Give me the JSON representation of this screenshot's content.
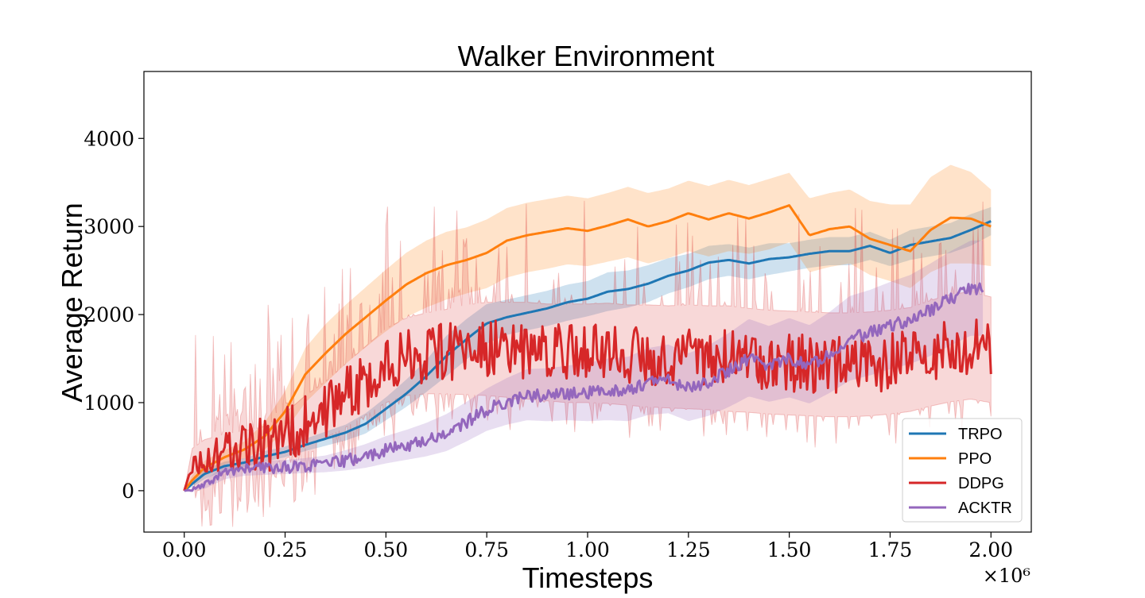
{
  "chart_data": {
    "type": "line",
    "title": "Walker Environment",
    "xlabel": "Timesteps",
    "ylabel": "Average Return",
    "x_offset_label": "×10⁶",
    "xlim": [
      -0.1,
      2.1
    ],
    "ylim": [
      -470,
      4760
    ],
    "xticks": [
      0.0,
      0.25,
      0.5,
      0.75,
      1.0,
      1.25,
      1.5,
      1.75,
      2.0
    ],
    "xtick_labels": [
      "0.00",
      "0.25",
      "0.50",
      "0.75",
      "1.00",
      "1.25",
      "1.50",
      "1.75",
      "2.00"
    ],
    "yticks": [
      0,
      1000,
      2000,
      3000,
      4000
    ],
    "ytick_labels": [
      "0",
      "1000",
      "2000",
      "3000",
      "4000"
    ],
    "grid": false,
    "legend_position": "lower-right",
    "series": [
      {
        "name": "TRPO",
        "color": "#1f77b4",
        "x": [
          0.0,
          0.02,
          0.05,
          0.1,
          0.15,
          0.2,
          0.25,
          0.3,
          0.35,
          0.4,
          0.45,
          0.5,
          0.55,
          0.6,
          0.65,
          0.7,
          0.75,
          0.8,
          0.85,
          0.9,
          0.95,
          1.0,
          1.05,
          1.1,
          1.15,
          1.2,
          1.25,
          1.3,
          1.35,
          1.4,
          1.45,
          1.5,
          1.55,
          1.6,
          1.65,
          1.7,
          1.75,
          1.8,
          1.85,
          1.9,
          1.95,
          2.0
        ],
        "y": [
          0,
          80,
          190,
          280,
          320,
          390,
          440,
          520,
          590,
          660,
          760,
          930,
          1100,
          1300,
          1530,
          1720,
          1900,
          1970,
          2020,
          2070,
          2140,
          2180,
          2260,
          2290,
          2350,
          2440,
          2500,
          2590,
          2620,
          2580,
          2630,
          2650,
          2690,
          2720,
          2720,
          2780,
          2700,
          2790,
          2830,
          2870,
          2960,
          3060
        ],
        "lower": [
          0,
          40,
          130,
          230,
          270,
          330,
          380,
          450,
          510,
          570,
          650,
          800,
          950,
          1120,
          1300,
          1490,
          1670,
          1770,
          1820,
          1870,
          1930,
          1980,
          2040,
          2080,
          2140,
          2240,
          2310,
          2400,
          2440,
          2400,
          2450,
          2490,
          2530,
          2560,
          2560,
          2620,
          2550,
          2620,
          2660,
          2700,
          2780,
          2900
        ],
        "upper": [
          0,
          120,
          240,
          330,
          370,
          450,
          500,
          590,
          670,
          750,
          880,
          1060,
          1260,
          1480,
          1760,
          1950,
          2120,
          2170,
          2220,
          2270,
          2340,
          2380,
          2480,
          2500,
          2560,
          2640,
          2690,
          2780,
          2800,
          2760,
          2810,
          2810,
          2850,
          2880,
          2880,
          2940,
          2850,
          2960,
          3000,
          3040,
          3140,
          3220
        ]
      },
      {
        "name": "PPO",
        "color": "#ff7f0e",
        "x": [
          0.0,
          0.02,
          0.05,
          0.1,
          0.15,
          0.2,
          0.25,
          0.3,
          0.35,
          0.4,
          0.45,
          0.5,
          0.55,
          0.6,
          0.65,
          0.7,
          0.75,
          0.8,
          0.85,
          0.9,
          0.95,
          1.0,
          1.05,
          1.1,
          1.15,
          1.2,
          1.25,
          1.3,
          1.35,
          1.4,
          1.45,
          1.5,
          1.55,
          1.6,
          1.65,
          1.7,
          1.75,
          1.8,
          1.85,
          1.9,
          1.95,
          2.0
        ],
        "y": [
          0,
          120,
          260,
          380,
          470,
          620,
          900,
          1320,
          1560,
          1780,
          1970,
          2160,
          2340,
          2470,
          2560,
          2620,
          2700,
          2840,
          2900,
          2940,
          2980,
          2950,
          3010,
          3080,
          3000,
          3060,
          3150,
          3080,
          3150,
          3090,
          3160,
          3240,
          2900,
          2970,
          3000,
          2860,
          2790,
          2720,
          2960,
          3100,
          3090,
          3000
        ],
        "lower": [
          0,
          60,
          170,
          300,
          370,
          470,
          680,
          1000,
          1220,
          1440,
          1630,
          1810,
          1970,
          2080,
          2170,
          2240,
          2300,
          2420,
          2480,
          2520,
          2570,
          2550,
          2600,
          2650,
          2580,
          2640,
          2720,
          2660,
          2720,
          2690,
          2740,
          2820,
          2480,
          2540,
          2580,
          2450,
          2380,
          2300,
          2480,
          2580,
          2580,
          2550
        ],
        "upper": [
          0,
          180,
          340,
          460,
          560,
          780,
          1130,
          1620,
          1890,
          2110,
          2310,
          2510,
          2700,
          2840,
          2940,
          2990,
          3080,
          3210,
          3270,
          3310,
          3350,
          3320,
          3380,
          3450,
          3380,
          3430,
          3520,
          3460,
          3530,
          3470,
          3540,
          3610,
          3320,
          3380,
          3420,
          3290,
          3250,
          3250,
          3560,
          3700,
          3620,
          3420
        ]
      },
      {
        "name": "DDPG",
        "color": "#d62728",
        "x": [
          0.0,
          0.02,
          0.05,
          0.1,
          0.15,
          0.2,
          0.25,
          0.3,
          0.35,
          0.4,
          0.45,
          0.5,
          0.55,
          0.6,
          0.65,
          0.7,
          0.75,
          0.8,
          0.85,
          0.9,
          0.95,
          1.0,
          1.05,
          1.1,
          1.15,
          1.2,
          1.25,
          1.3,
          1.35,
          1.4,
          1.45,
          1.5,
          1.55,
          1.6,
          1.65,
          1.7,
          1.75,
          1.8,
          1.85,
          1.9,
          1.95,
          2.0
        ],
        "y": [
          0,
          300,
          380,
          430,
          460,
          500,
          620,
          780,
          920,
          1080,
          1250,
          1420,
          1520,
          1560,
          1580,
          1600,
          1610,
          1600,
          1590,
          1570,
          1560,
          1560,
          1560,
          1540,
          1530,
          1520,
          1520,
          1510,
          1500,
          1480,
          1460,
          1450,
          1440,
          1430,
          1430,
          1440,
          1460,
          1490,
          1560,
          1620,
          1650,
          1600
        ],
        "lower": [
          0,
          120,
          180,
          220,
          250,
          280,
          360,
          480,
          600,
          720,
          860,
          1000,
          1080,
          1100,
          1100,
          1090,
          1080,
          1060,
          1040,
          1020,
          1000,
          1000,
          990,
          970,
          950,
          940,
          930,
          920,
          900,
          890,
          870,
          860,
          850,
          840,
          840,
          850,
          870,
          900,
          960,
          1010,
          1040,
          1000
        ],
        "upper": [
          0,
          480,
          580,
          640,
          680,
          730,
          880,
          1080,
          1240,
          1440,
          1640,
          1840,
          1960,
          2020,
          2060,
          2110,
          2140,
          2140,
          2140,
          2120,
          2120,
          2120,
          2130,
          2110,
          2110,
          2100,
          2110,
          2100,
          2100,
          2070,
          2050,
          2040,
          2030,
          2020,
          2020,
          2030,
          2050,
          2080,
          2160,
          2230,
          2260,
          2200
        ],
        "noise_amplitude": 330,
        "spike_amplitude": 1400
      },
      {
        "name": "ACKTR",
        "color": "#9467bd",
        "x": [
          0.0,
          0.02,
          0.05,
          0.1,
          0.15,
          0.2,
          0.25,
          0.3,
          0.35,
          0.4,
          0.45,
          0.5,
          0.55,
          0.6,
          0.65,
          0.7,
          0.75,
          0.8,
          0.85,
          0.9,
          0.95,
          1.0,
          1.05,
          1.1,
          1.15,
          1.2,
          1.25,
          1.3,
          1.35,
          1.4,
          1.45,
          1.5,
          1.55,
          1.6,
          1.65,
          1.7,
          1.75,
          1.8,
          1.85,
          1.9,
          1.95,
          1.98
        ],
        "y": [
          0,
          10,
          60,
          210,
          250,
          260,
          270,
          280,
          300,
          340,
          390,
          460,
          510,
          570,
          650,
          780,
          920,
          1010,
          1080,
          1080,
          1100,
          1110,
          1140,
          1140,
          1230,
          1260,
          1160,
          1240,
          1360,
          1500,
          1430,
          1500,
          1420,
          1560,
          1720,
          1790,
          1870,
          1940,
          2050,
          2180,
          2300,
          2300
        ],
        "lower": [
          0,
          0,
          20,
          130,
          170,
          180,
          190,
          200,
          210,
          230,
          260,
          310,
          350,
          390,
          450,
          560,
          680,
          750,
          800,
          790,
          800,
          790,
          800,
          790,
          860,
          880,
          790,
          850,
          950,
          1070,
          1010,
          1060,
          990,
          1110,
          1250,
          1310,
          1380,
          1440,
          1530,
          1650,
          1760,
          1760
        ],
        "upper": [
          0,
          20,
          110,
          290,
          330,
          340,
          350,
          370,
          400,
          460,
          530,
          620,
          690,
          770,
          870,
          1010,
          1160,
          1280,
          1380,
          1390,
          1420,
          1450,
          1500,
          1520,
          1620,
          1660,
          1560,
          1650,
          1790,
          1950,
          1870,
          1960,
          1880,
          2030,
          2210,
          2280,
          2370,
          2450,
          2580,
          2720,
          2840,
          2840
        ],
        "noise_amplitude": 70
      }
    ]
  }
}
